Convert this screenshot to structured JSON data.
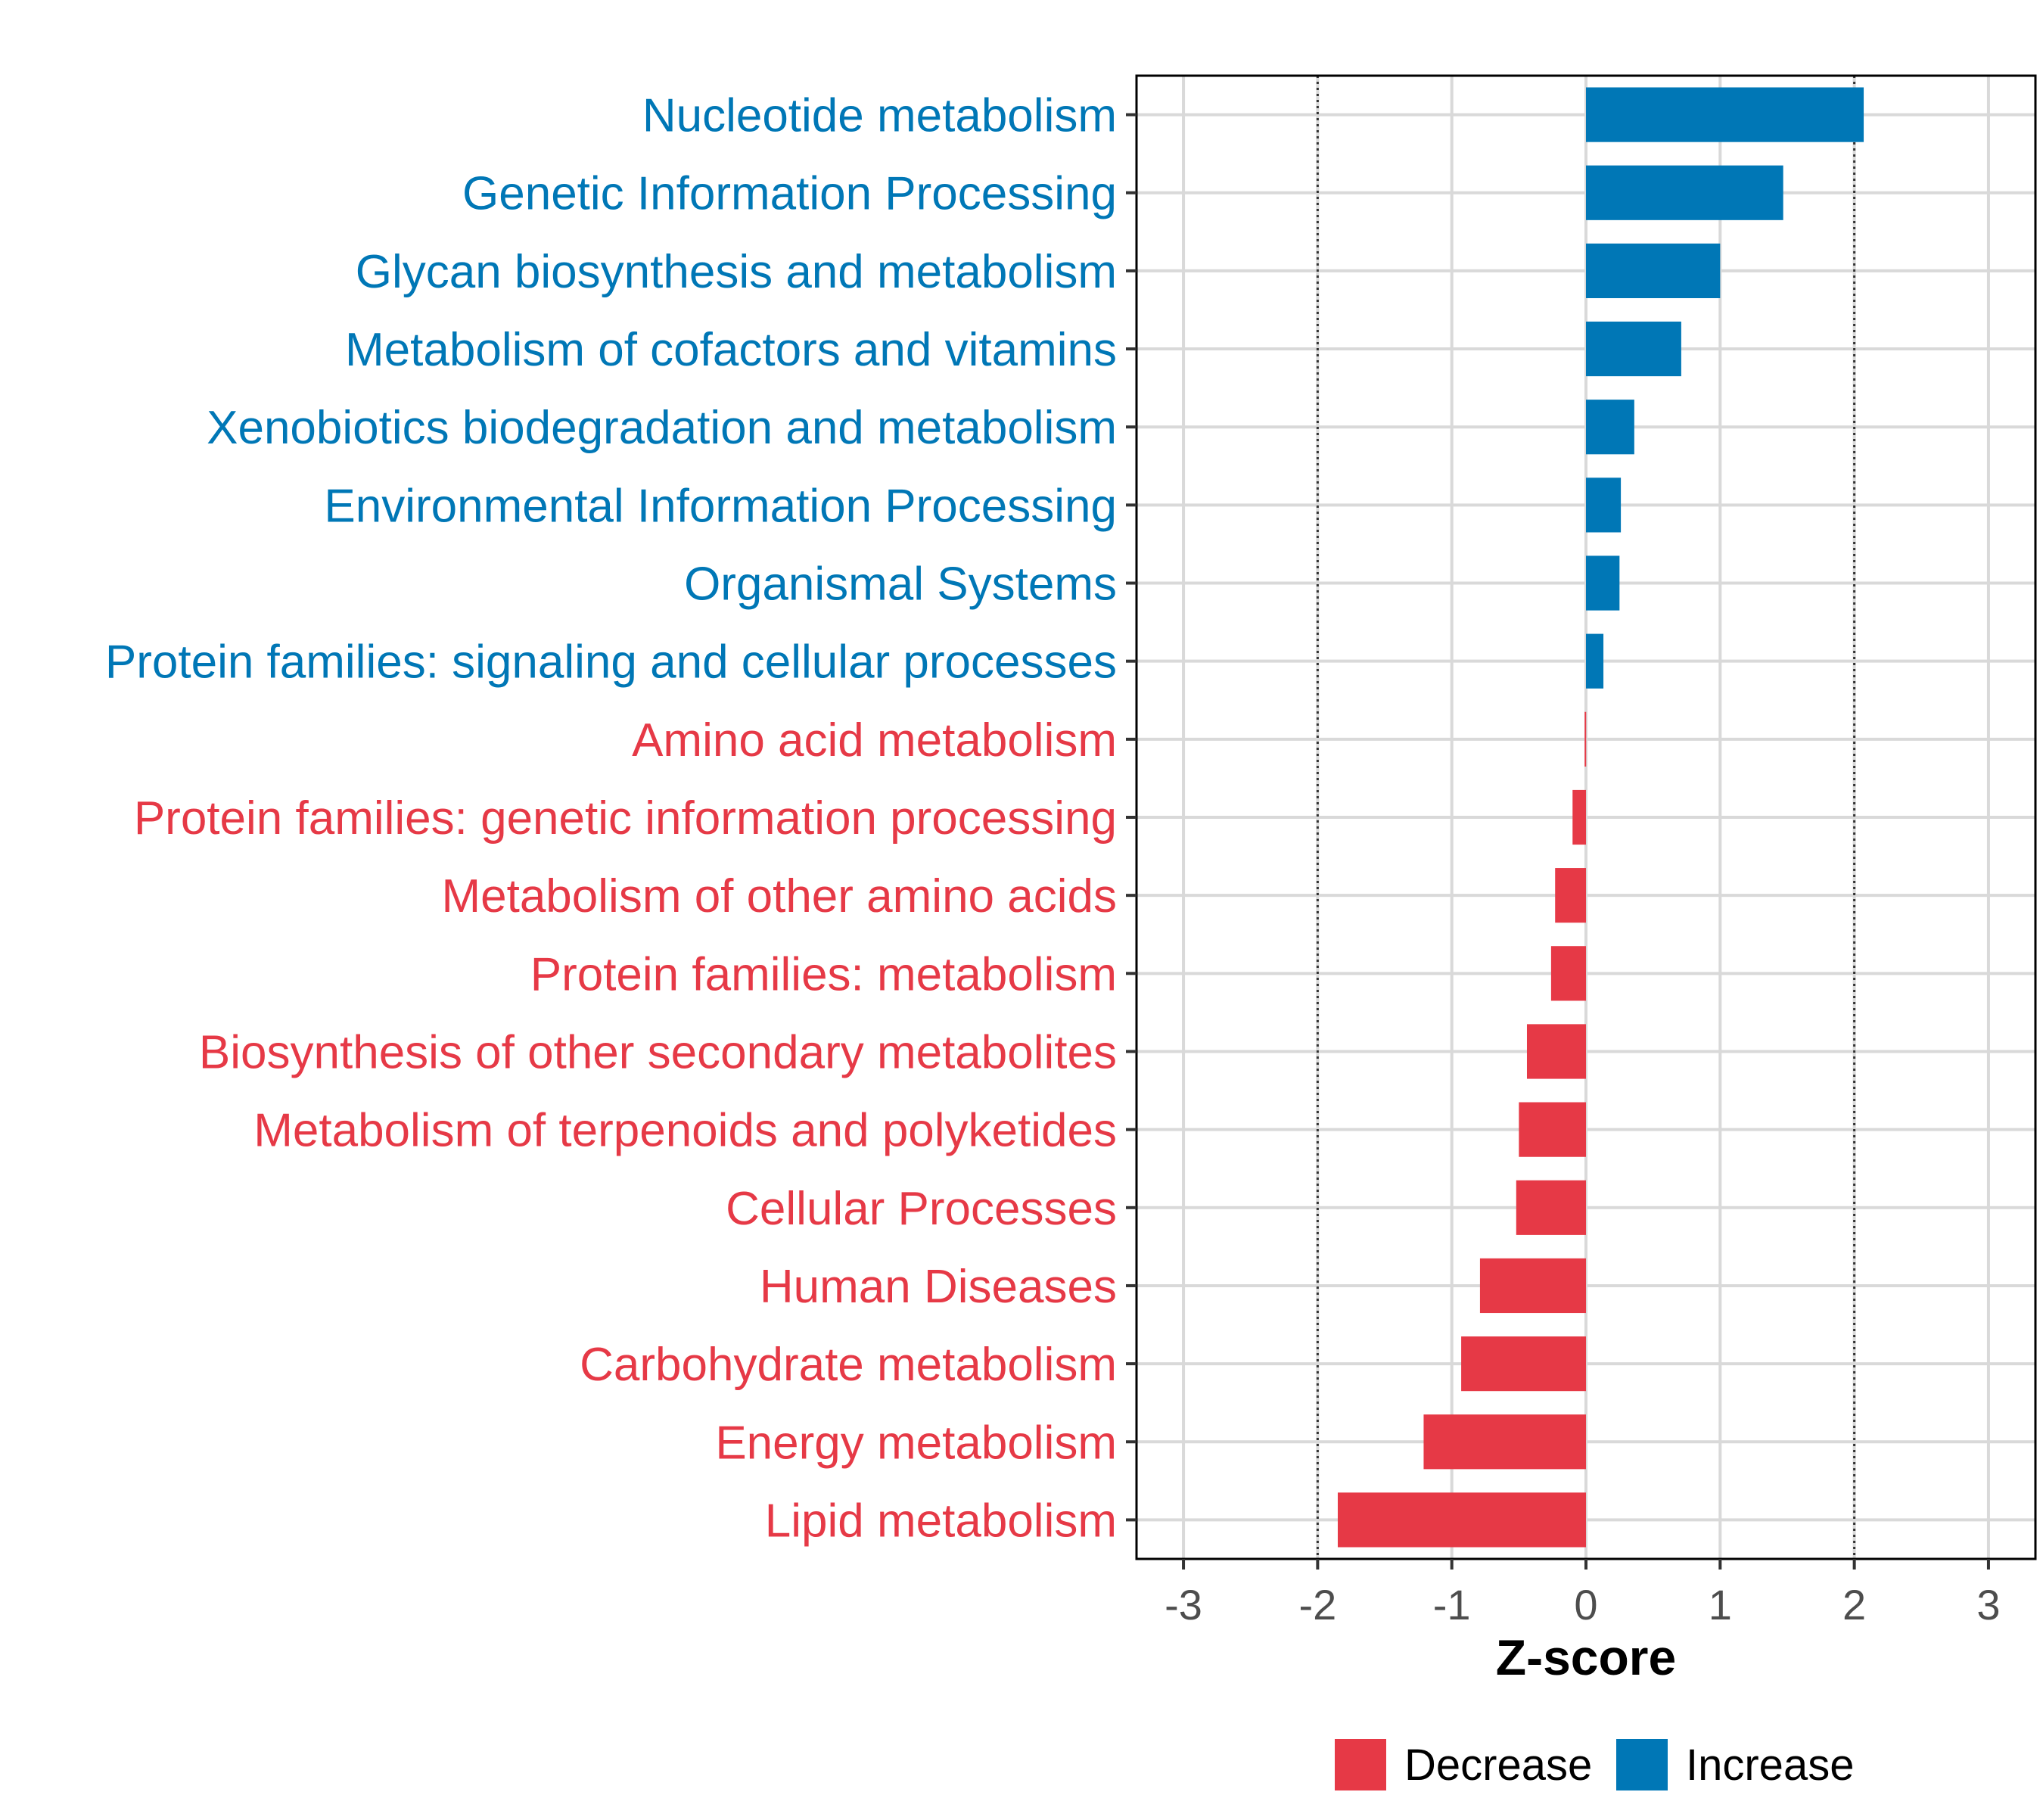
{
  "chart_data": {
    "type": "bar",
    "orientation": "horizontal",
    "xlabel": "Z-score",
    "xlim": [
      -3.35,
      3.35
    ],
    "xticks": [
      -3,
      -2,
      -1,
      0,
      1,
      2,
      3
    ],
    "reference_lines": [
      -2,
      2
    ],
    "grid": true,
    "legend_position": "bottom",
    "colors": {
      "Decrease": "#e63946",
      "Increase": "#0077b6"
    },
    "legend": [
      {
        "label": "Decrease",
        "color": "#e63946"
      },
      {
        "label": "Increase",
        "color": "#0077b6"
      }
    ],
    "categories": [
      {
        "label": "Nucleotide metabolism",
        "value": 2.07,
        "group": "Increase"
      },
      {
        "label": "Genetic Information Processing",
        "value": 1.47,
        "group": "Increase"
      },
      {
        "label": "Glycan biosynthesis and metabolism",
        "value": 1.0,
        "group": "Increase"
      },
      {
        "label": "Metabolism of cofactors and vitamins",
        "value": 0.71,
        "group": "Increase"
      },
      {
        "label": "Xenobiotics biodegradation and metabolism",
        "value": 0.36,
        "group": "Increase"
      },
      {
        "label": "Environmental Information Processing",
        "value": 0.26,
        "group": "Increase"
      },
      {
        "label": "Organismal Systems",
        "value": 0.25,
        "group": "Increase"
      },
      {
        "label": "Protein families: signaling and cellular processes",
        "value": 0.13,
        "group": "Increase"
      },
      {
        "label": "Amino acid metabolism",
        "value": -0.01,
        "group": "Decrease"
      },
      {
        "label": "Protein families: genetic information processing",
        "value": -0.1,
        "group": "Decrease"
      },
      {
        "label": "Metabolism of other amino acids",
        "value": -0.23,
        "group": "Decrease"
      },
      {
        "label": "Protein families: metabolism",
        "value": -0.26,
        "group": "Decrease"
      },
      {
        "label": "Biosynthesis of other secondary metabolites",
        "value": -0.44,
        "group": "Decrease"
      },
      {
        "label": "Metabolism of terpenoids and polyketides",
        "value": -0.5,
        "group": "Decrease"
      },
      {
        "label": "Cellular Processes",
        "value": -0.52,
        "group": "Decrease"
      },
      {
        "label": "Human Diseases",
        "value": -0.79,
        "group": "Decrease"
      },
      {
        "label": "Carbohydrate metabolism",
        "value": -0.93,
        "group": "Decrease"
      },
      {
        "label": "Energy metabolism",
        "value": -1.21,
        "group": "Decrease"
      },
      {
        "label": "Lipid metabolism",
        "value": -1.85,
        "group": "Decrease"
      }
    ]
  }
}
